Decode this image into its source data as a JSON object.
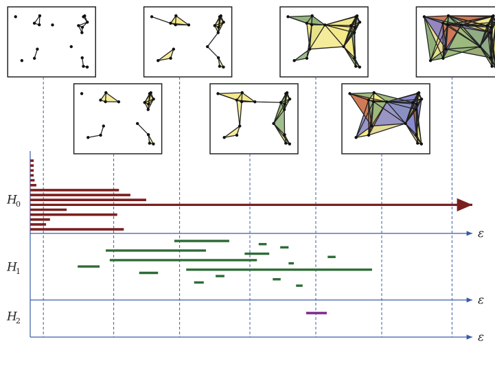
{
  "chart_data": {
    "type": "barcode",
    "xlim": [
      0,
      100
    ],
    "axis_label": "ε",
    "snapshots": [
      3,
      19,
      34,
      50,
      65,
      80,
      96
    ],
    "panels": [
      {
        "name": "H",
        "subscript": "0",
        "color": "#7b1f1f",
        "bars": [
          {
            "birth": 0,
            "death": 0.8
          },
          {
            "birth": 0,
            "death": 0.8
          },
          {
            "birth": 0,
            "death": 0.8
          },
          {
            "birth": 0,
            "death": 0.8
          },
          {
            "birth": 0,
            "death": 1
          },
          {
            "birth": 0,
            "death": 1.4
          },
          {
            "birth": 0,
            "death": 20.2
          },
          {
            "birth": 0,
            "death": 22.8
          },
          {
            "birth": 0,
            "death": 26.4
          },
          {
            "birth": 0,
            "death": null
          },
          {
            "birth": 0,
            "death": 8.3
          },
          {
            "birth": 0,
            "death": 19.8
          },
          {
            "birth": 0,
            "death": 4.5
          },
          {
            "birth": 0,
            "death": 3.6
          },
          {
            "birth": 0,
            "death": 21.3
          }
        ]
      },
      {
        "name": "H",
        "subscript": "1",
        "color": "#2e6b35",
        "bars": [
          {
            "birth": 32.8,
            "death": 45.3
          },
          {
            "birth": 52,
            "death": 53.8
          },
          {
            "birth": 56.9,
            "death": 58.8
          },
          {
            "birth": 17.2,
            "death": 40
          },
          {
            "birth": 48.8,
            "death": 54.4
          },
          {
            "birth": 67.7,
            "death": 69.5
          },
          {
            "birth": 18.1,
            "death": 51.6
          },
          {
            "birth": 58.8,
            "death": 60
          },
          {
            "birth": 10.8,
            "death": 15.8
          },
          {
            "birth": 35.5,
            "death": 77.8
          },
          {
            "birth": 24.8,
            "death": 29.1
          },
          {
            "birth": 42.2,
            "death": 44.2
          },
          {
            "birth": 55.2,
            "death": 57
          },
          {
            "birth": 37.3,
            "death": 39.5
          },
          {
            "birth": 60.5,
            "death": 62
          }
        ]
      },
      {
        "name": "H",
        "subscript": "2",
        "color": "#7b2a8a",
        "bars": [
          {
            "birth": 62.8,
            "death": 67.5
          }
        ]
      }
    ]
  }
}
